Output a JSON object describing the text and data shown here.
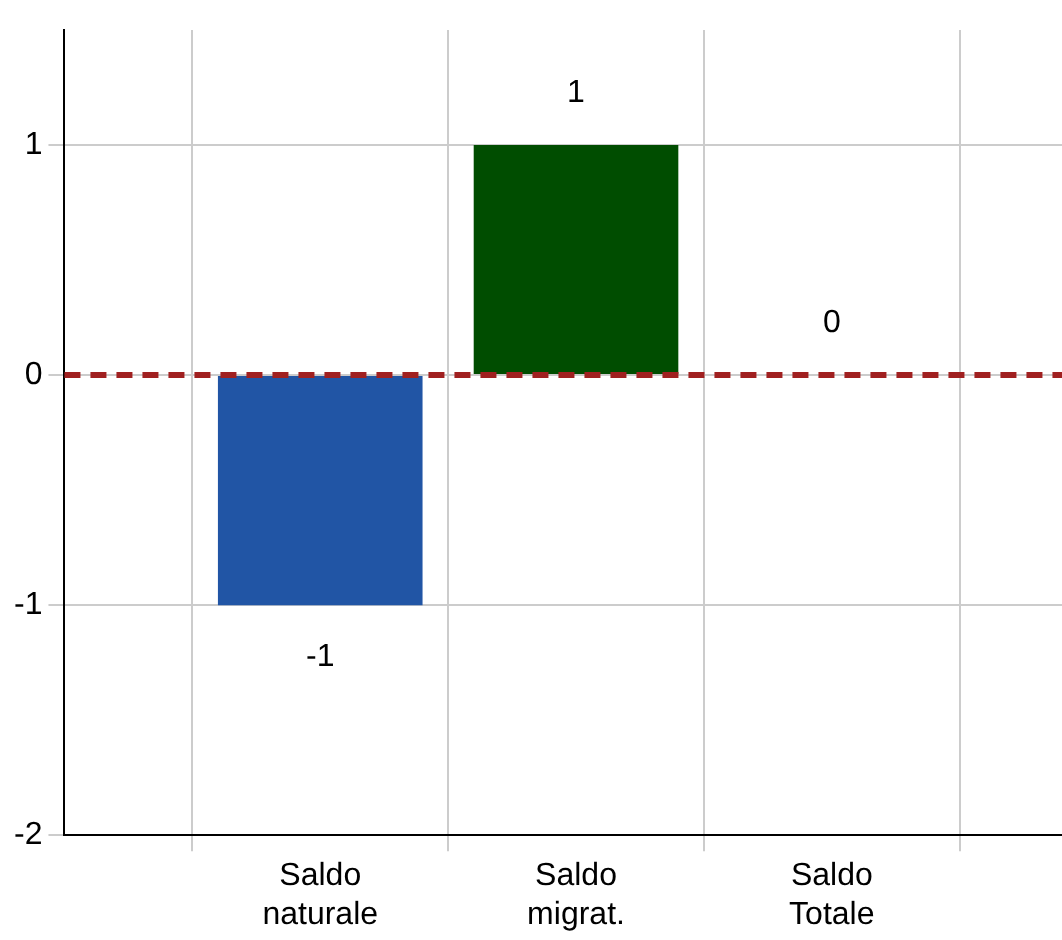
{
  "chart_data": {
    "type": "bar",
    "categories": [
      "Saldo naturale",
      "Saldo migrat.",
      "Saldo Totale"
    ],
    "values": [
      -1,
      1,
      0
    ],
    "colors": [
      "#2155a5",
      "#004d00",
      "#2155a5"
    ],
    "ylim": [
      -2,
      1.5
    ],
    "yticks": [
      -2,
      -1,
      0,
      1
    ],
    "grid": true,
    "data_labels": true,
    "ref_lines": [
      {
        "axis": "y",
        "value": 0,
        "color": "#a02020",
        "line_style": "dashed"
      }
    ]
  }
}
